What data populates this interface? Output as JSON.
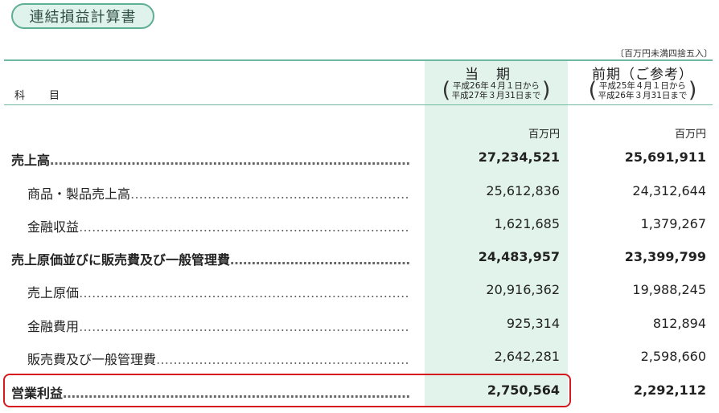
{
  "title": "連結損益計算書",
  "unit_note": "〔百万円未満四捨五入〕",
  "header": {
    "kamoku": "科目",
    "current": {
      "title": "当期",
      "range_line1": "平成26年４月１日から",
      "range_line2": "平成27年３月31日まで"
    },
    "previous": {
      "title": "前期（ご参考）",
      "range_line1": "平成25年４月１日から",
      "range_line2": "平成26年３月31日まで"
    }
  },
  "units": {
    "current": "百万円",
    "previous": "百万円"
  },
  "rows": [
    {
      "label": "売上高",
      "current": "27,234,521",
      "previous": "25,691,911"
    },
    {
      "label": "商品・製品売上高",
      "current": "25,612,836",
      "previous": "24,312,644"
    },
    {
      "label": "金融収益",
      "current": "1,621,685",
      "previous": "1,379,267"
    },
    {
      "label": "売上原価並びに販売費及び一般管理費",
      "current": "24,483,957",
      "previous": "23,399,799"
    },
    {
      "label": "売上原価",
      "current": "20,916,362",
      "previous": "19,988,245"
    },
    {
      "label": "金融費用",
      "current": "925,314",
      "previous": "812,894"
    },
    {
      "label": "販売費及び一般管理費",
      "current": "2,642,281",
      "previous": "2,598,660"
    },
    {
      "label": "営業利益",
      "current": "2,750,564",
      "previous": "2,292,112"
    }
  ],
  "colors": {
    "accent_green": "#6cb8a3",
    "current_column_bg": "#e2f3ec",
    "highlight_red": "#d7191f"
  }
}
